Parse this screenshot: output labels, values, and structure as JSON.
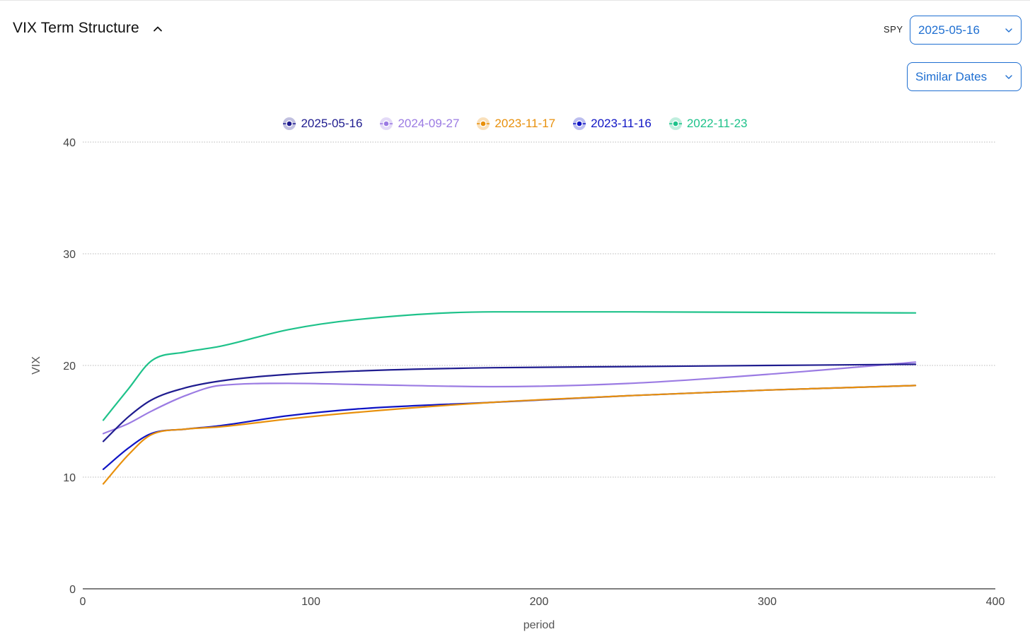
{
  "header": {
    "title": "VIX Term Structure",
    "collapse_icon": "chevron-up-icon",
    "ticker_label": "SPY",
    "date_value": "2025-05-16",
    "mode_value": "Similar Dates",
    "dropdown_icon": "chevron-down-icon"
  },
  "chart_data": {
    "type": "line",
    "xlabel": "period",
    "ylabel": "VIX",
    "xlim": [
      0,
      400
    ],
    "ylim": [
      0,
      40
    ],
    "xticks": [
      0,
      100,
      200,
      300,
      400
    ],
    "yticks": [
      0,
      10,
      20,
      30,
      40
    ],
    "grid": true,
    "legend_position": "top-center",
    "series": [
      {
        "name": "2025-05-16",
        "color": "#1f1c8f",
        "x": [
          9,
          20,
          30,
          45,
          60,
          90,
          120,
          180,
          240,
          300,
          365
        ],
        "y": [
          13.2,
          15.4,
          16.9,
          18.0,
          18.6,
          19.2,
          19.5,
          19.8,
          19.9,
          20.0,
          20.1
        ]
      },
      {
        "name": "2024-09-27",
        "color": "#9b7be3",
        "x": [
          9,
          20,
          30,
          45,
          60,
          90,
          120,
          180,
          240,
          300,
          365
        ],
        "y": [
          13.9,
          14.8,
          15.9,
          17.3,
          18.2,
          18.4,
          18.3,
          18.1,
          18.4,
          19.2,
          20.3
        ]
      },
      {
        "name": "2023-11-17",
        "color": "#e8900c",
        "x": [
          9,
          20,
          30,
          45,
          60,
          90,
          120,
          180,
          240,
          300,
          365
        ],
        "y": [
          9.4,
          12.0,
          13.8,
          14.3,
          14.5,
          15.2,
          15.8,
          16.7,
          17.3,
          17.8,
          18.2
        ]
      },
      {
        "name": "2023-11-16",
        "color": "#0f14c4",
        "x": [
          9,
          20,
          30,
          45,
          60,
          90,
          120,
          180,
          240,
          300,
          365
        ],
        "y": [
          10.7,
          12.6,
          13.9,
          14.3,
          14.6,
          15.5,
          16.1,
          16.7,
          17.3,
          17.8,
          18.2
        ]
      },
      {
        "name": "2022-11-23",
        "color": "#1ec28a",
        "x": [
          9,
          20,
          30,
          45,
          60,
          90,
          120,
          180,
          240,
          300,
          365
        ],
        "y": [
          15.1,
          17.9,
          20.4,
          21.2,
          21.7,
          23.2,
          24.1,
          24.8,
          24.8,
          24.75,
          24.7
        ]
      }
    ]
  }
}
